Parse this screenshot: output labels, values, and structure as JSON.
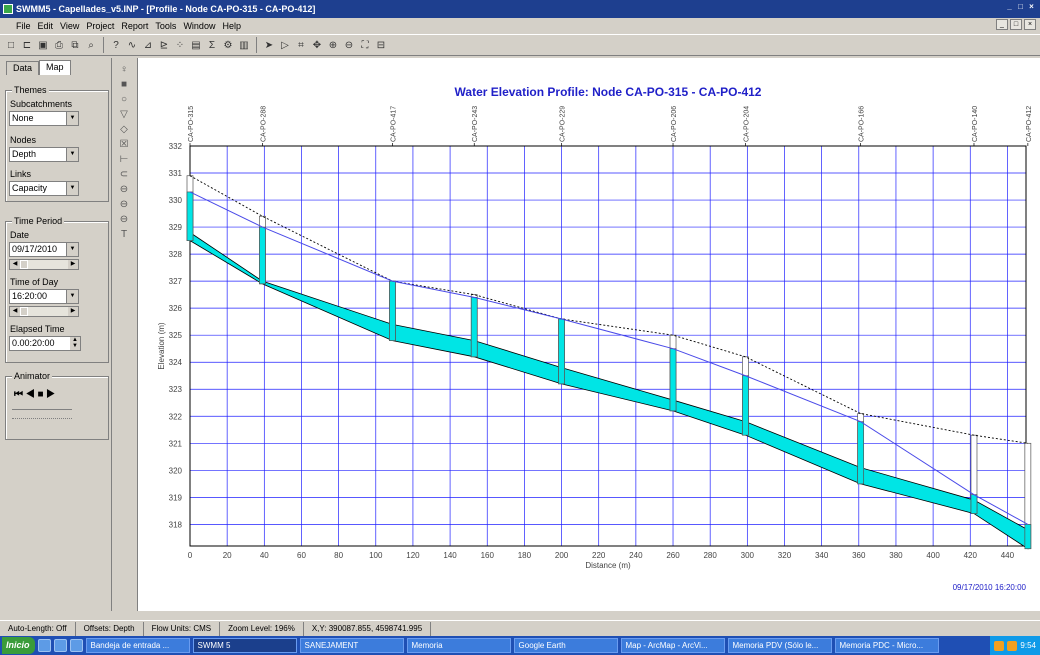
{
  "window": {
    "title": "SWMM5 - Capellades_v5.INP - [Profile - Node CA-PO-315 - CA-PO-412]",
    "title_color": "#1e3f8f",
    "controls": [
      "_",
      "□",
      "×"
    ]
  },
  "menu": [
    "File",
    "Edit",
    "View",
    "Project",
    "Report",
    "Tools",
    "Window",
    "Help"
  ],
  "toolbar_icons": [
    "new-file-icon",
    "open-icon",
    "save-icon",
    "print-icon",
    "copy-icon",
    "find-icon",
    "query-icon",
    "map-icon",
    "profile-icon",
    "time-series-icon",
    "scatter-icon",
    "table-icon",
    "statistics-icon",
    "options-icon",
    "arrange-icon",
    "select-icon",
    "vertex-icon",
    "region-icon",
    "pan-icon",
    "zoom-in-icon",
    "zoom-out-icon",
    "full-extent-icon",
    "measure-icon"
  ],
  "left_panel": {
    "tabs": [
      "Data",
      "Map"
    ],
    "themes_title": "Themes",
    "subcatchments_label": "Subcatchments",
    "subcatchments_value": "None",
    "nodes_label": "Nodes",
    "nodes_value": "Depth",
    "links_label": "Links",
    "links_value": "Capacity",
    "time_title": "Time Period",
    "date_label": "Date",
    "date_value": "09/17/2010",
    "time_label": "Time of Day",
    "time_value": "16:20:00",
    "elapsed_label": "Elapsed Time",
    "elapsed_value": "0.00:20:00",
    "animator_title": "Animator",
    "animator_controls": "⏮ ◀ ■ ▶"
  },
  "vertical_tools": [
    "♀",
    "■",
    "○",
    "▽",
    "◇",
    "☒",
    "⊢",
    "⊂",
    "⊖",
    "⊖",
    "⊖",
    "T"
  ],
  "chart_data": {
    "type": "line",
    "title": "Water Elevation Profile:  Node CA-PO-315 - CA-PO-412",
    "xlabel": "Distance (m)",
    "ylabel": "Elevation (m)",
    "xlim": [
      0,
      450
    ],
    "ylim": [
      317.2,
      332
    ],
    "xticks": [
      0,
      20,
      40,
      60,
      80,
      100,
      120,
      140,
      160,
      180,
      200,
      220,
      240,
      260,
      280,
      300,
      320,
      340,
      360,
      380,
      400,
      420,
      440
    ],
    "yticks": [
      318,
      319,
      320,
      321,
      322,
      323,
      324,
      325,
      326,
      327,
      328,
      329,
      330,
      331,
      332
    ],
    "grid": true,
    "timestamp": "09/17/2010 16:20:00",
    "nodes": [
      {
        "name": "CA-PO-315",
        "x": 0,
        "invert": 328.8,
        "ground": 330.9
      },
      {
        "name": "CA-PO-288",
        "x": 39,
        "invert": 327.0,
        "ground": 329.4
      },
      {
        "name": "CA-PO-417",
        "x": 109,
        "invert": 325.4,
        "ground": 327.0
      },
      {
        "name": "CA-PO-243",
        "x": 153,
        "invert": 324.8,
        "ground": 326.5
      },
      {
        "name": "CA-PO-229",
        "x": 200,
        "invert": 323.8,
        "ground": 325.6
      },
      {
        "name": "CA-PO-206",
        "x": 260,
        "invert": 322.6,
        "ground": 325.0
      },
      {
        "name": "CA-PO-204",
        "x": 299,
        "invert": 321.8,
        "ground": 324.2
      },
      {
        "name": "CA-PO-166",
        "x": 361,
        "invert": 320.1,
        "ground": 322.1
      },
      {
        "name": "CA-PO-140",
        "x": 422,
        "invert": 318.9,
        "ground": 321.3
      },
      {
        "name": "CA-PO-412",
        "x": 451,
        "invert": 317.8,
        "ground": 321.0
      }
    ],
    "series": [
      {
        "name": "Water surface",
        "values": [
          330.3,
          329.0,
          327.0,
          326.4,
          325.6,
          324.5,
          323.5,
          321.8,
          319.1,
          318.0
        ]
      },
      {
        "name": "Conduit bottom",
        "values": [
          328.5,
          326.9,
          324.8,
          324.2,
          323.2,
          322.2,
          321.3,
          319.5,
          318.4,
          317.1
        ]
      }
    ],
    "colors": {
      "fill": "#00e5e5",
      "water": "#4a4ae8",
      "ground": "#000000",
      "grid": "#2020ff",
      "title": "#2020c8",
      "axis_text": "#444444"
    }
  },
  "status_bar": {
    "auto_length": "Auto-Length: Off",
    "offsets": "Offsets: Depth",
    "flow_units": "Flow Units: CMS",
    "zoom": "Zoom Level: 196%",
    "xy": "X,Y: 390087.855, 4598741.995"
  },
  "taskbar": {
    "start": "Inicio",
    "items": [
      "Bandeja de entrada ...",
      "SWMM 5",
      "SANEJAMENT",
      "Memoria",
      "Google Earth",
      "Map - ArcMap - ArcVi...",
      "Memoria PDV (Sólo le...",
      "Memoria PDC - Micro..."
    ],
    "active_index": 1,
    "clock": "9:54"
  }
}
